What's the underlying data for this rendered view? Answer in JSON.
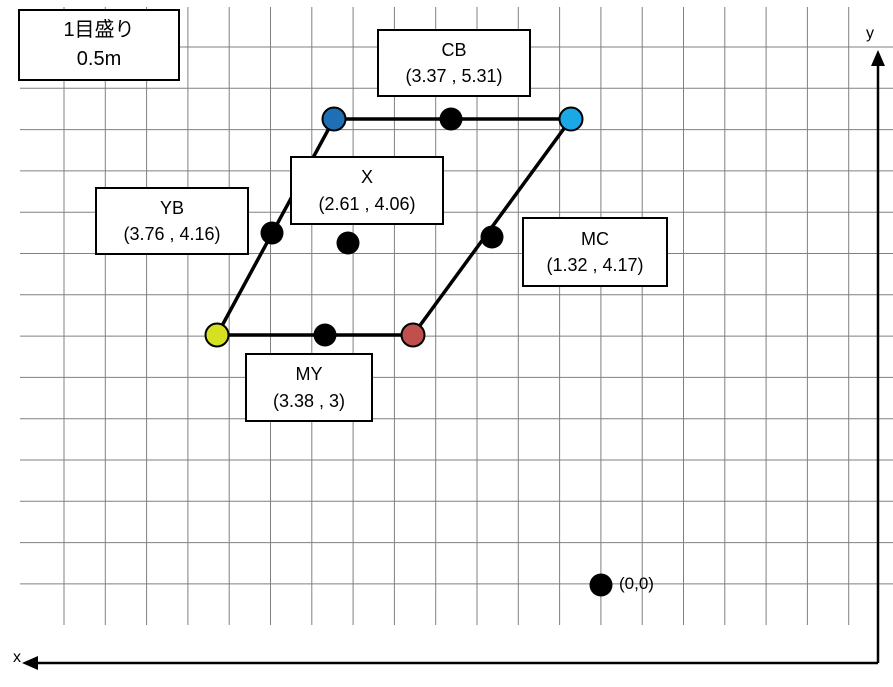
{
  "scale_box": {
    "line1": "1目盛り",
    "line2": "0.5m"
  },
  "axes": {
    "x_label": "x",
    "y_label": "y"
  },
  "origin": {
    "label": "(0,0)",
    "x": 0,
    "y": 0
  },
  "grid_step_m": 0.5,
  "points": [
    {
      "id": "CB",
      "name": "CB",
      "coord_text": "(3.37 , 5.31)",
      "x": 3.37,
      "y": 5.31
    },
    {
      "id": "X",
      "name": "X",
      "coord_text": "(2.61 , 4.06)",
      "x": 2.61,
      "y": 4.06
    },
    {
      "id": "YB",
      "name": "YB",
      "coord_text": "(3.76 , 4.16)",
      "x": 3.76,
      "y": 4.16
    },
    {
      "id": "MC",
      "name": "MC",
      "coord_text": "(1.32 , 4.17)",
      "x": 1.32,
      "y": 4.17
    },
    {
      "id": "MY",
      "name": "MY",
      "coord_text": "(3.38 , 3)",
      "x": 3.38,
      "y": 3
    }
  ],
  "vertices": [
    {
      "id": "blue",
      "color": "#1f6fb4"
    },
    {
      "id": "cyan",
      "color": "#1aa9e6"
    },
    {
      "id": "yellow",
      "color": "#d4e021"
    },
    {
      "id": "red",
      "color": "#c0504d"
    }
  ],
  "colors": {
    "grid": "#808080",
    "line": "#000000",
    "midpoint": "#000000"
  }
}
